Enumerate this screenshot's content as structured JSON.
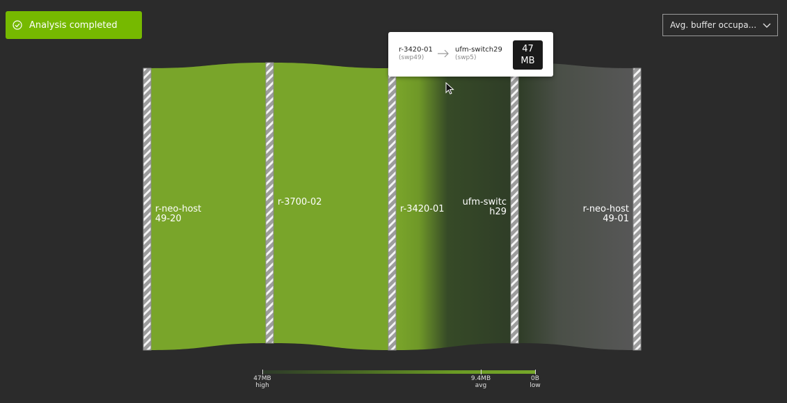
{
  "toast": {
    "message": "Analysis completed"
  },
  "metric_dropdown": {
    "value": "Avg. buffer occupa..."
  },
  "nodes": [
    {
      "label": "r-neo-host\n49-20"
    },
    {
      "label": "r-3700-02"
    },
    {
      "label": "r-3420-01"
    },
    {
      "label": "ufm-switc\nh29"
    },
    {
      "label": "r-neo-host\n49-01"
    }
  ],
  "tooltip": {
    "source_name": "r-3420-01",
    "source_port": "(swp49)",
    "target_name": "ufm-switch29",
    "target_port": "(swp5)",
    "value": "47\nMB"
  },
  "legend": {
    "high_value": "47MB",
    "high_label": "high",
    "avg_value": "9.4MB",
    "avg_label": "avg",
    "low_value": "0B",
    "low_label": "low"
  },
  "colors": {
    "background": "#2b2b2b",
    "accent": "#76b900",
    "link_high": "#79a52a",
    "link_mid": "#2f3d27",
    "link_low": "#565656"
  }
}
